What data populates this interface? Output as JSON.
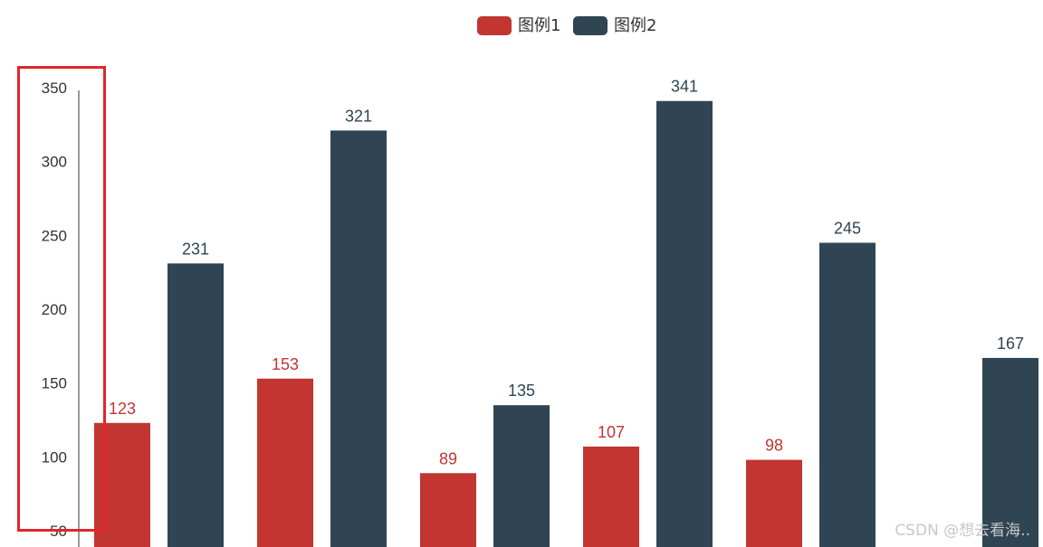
{
  "chart_data": {
    "type": "bar",
    "categories": [
      "",
      "",
      "",
      "",
      "",
      ""
    ],
    "series": [
      {
        "name": "图例1",
        "color": "#c23531",
        "values": [
          123,
          153,
          89,
          107,
          98,
          null
        ]
      },
      {
        "name": "图例2",
        "color": "#2f4554",
        "values": [
          231,
          321,
          135,
          341,
          245,
          167
        ]
      }
    ],
    "yticks": [
      50,
      100,
      150,
      200,
      250,
      300,
      350
    ],
    "ylim": [
      50,
      350
    ],
    "title": "",
    "xlabel": "",
    "ylabel": "",
    "legend": "top-center",
    "grid": false,
    "data_labels": true
  },
  "watermark": "CSDN @想去看海.."
}
